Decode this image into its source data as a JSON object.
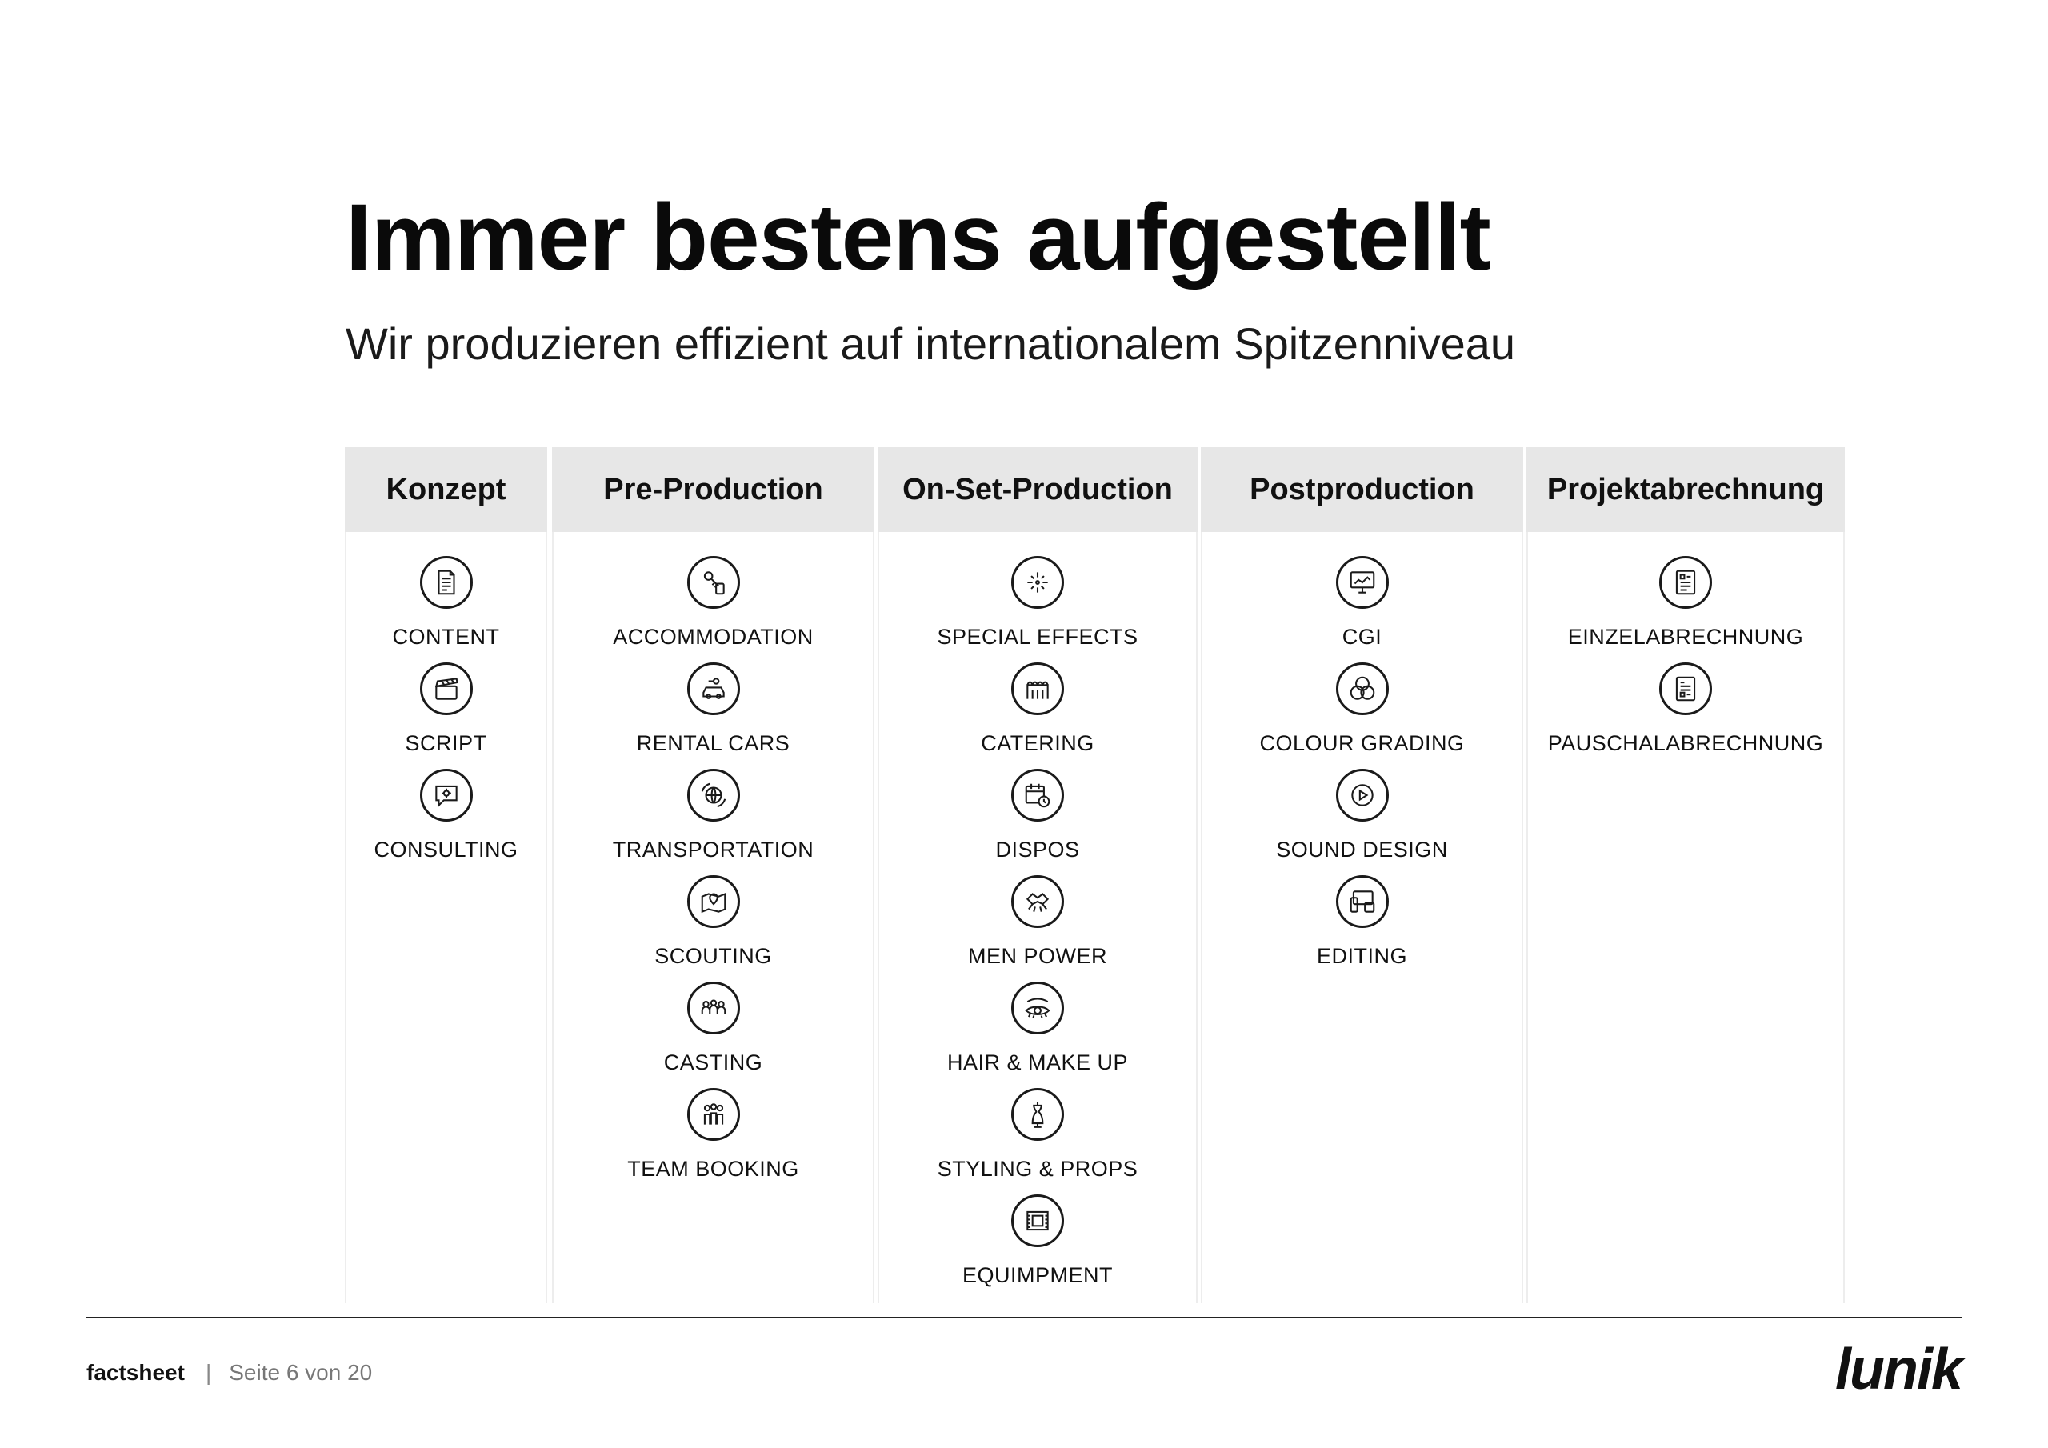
{
  "heading": {
    "title": "Immer bestens aufgestellt",
    "subtitle": "Wir produzieren effizient auf internationalem Spitzenniveau"
  },
  "columns": [
    {
      "title": "Konzept",
      "items": [
        {
          "label": "CONTENT",
          "icon": "document-icon"
        },
        {
          "label": "SCRIPT",
          "icon": "clapperboard-icon"
        },
        {
          "label": "CONSULTING",
          "icon": "speech-bubble-gear-icon"
        }
      ]
    },
    {
      "title": "Pre-Production",
      "items": [
        {
          "label": "ACCOMMODATION",
          "icon": "key-tag-icon"
        },
        {
          "label": "RENTAL CARS",
          "icon": "car-key-icon"
        },
        {
          "label": "TRANSPORTATION",
          "icon": "globe-arrows-icon"
        },
        {
          "label": "SCOUTING",
          "icon": "map-pin-icon"
        },
        {
          "label": "CASTING",
          "icon": "people-group-icon"
        },
        {
          "label": "TEAM BOOKING",
          "icon": "team-icon"
        }
      ]
    },
    {
      "title": "On-Set-Production",
      "items": [
        {
          "label": "SPECIAL EFFECTS",
          "icon": "sparkles-icon"
        },
        {
          "label": "CATERING",
          "icon": "food-stand-icon"
        },
        {
          "label": "DISPOS",
          "icon": "calendar-clock-icon"
        },
        {
          "label": "MEN POWER",
          "icon": "hands-icon"
        },
        {
          "label": "HAIR & MAKE UP",
          "icon": "eye-lashes-icon"
        },
        {
          "label": "STYLING & PROPS",
          "icon": "dress-form-icon"
        },
        {
          "label": "EQUIMPMENT",
          "icon": "film-frame-icon"
        }
      ]
    },
    {
      "title": "Postproduction",
      "items": [
        {
          "label": "CGI",
          "icon": "monitor-chart-icon"
        },
        {
          "label": "COLOUR GRADING",
          "icon": "color-circles-icon"
        },
        {
          "label": "SOUND DESIGN",
          "icon": "play-icon"
        },
        {
          "label": "EDITING",
          "icon": "devices-icon"
        }
      ]
    },
    {
      "title": "Projektabrechnung",
      "items": [
        {
          "label": "EINZELABRECHNUNG",
          "icon": "invoice-list-icon"
        },
        {
          "label": "PAUSCHALABRECHNUNG",
          "icon": "invoice-icon"
        }
      ]
    }
  ],
  "footer": {
    "brand": "factsheet",
    "separator": "|",
    "page": "Seite 6 von 20",
    "logo": "lunik"
  }
}
